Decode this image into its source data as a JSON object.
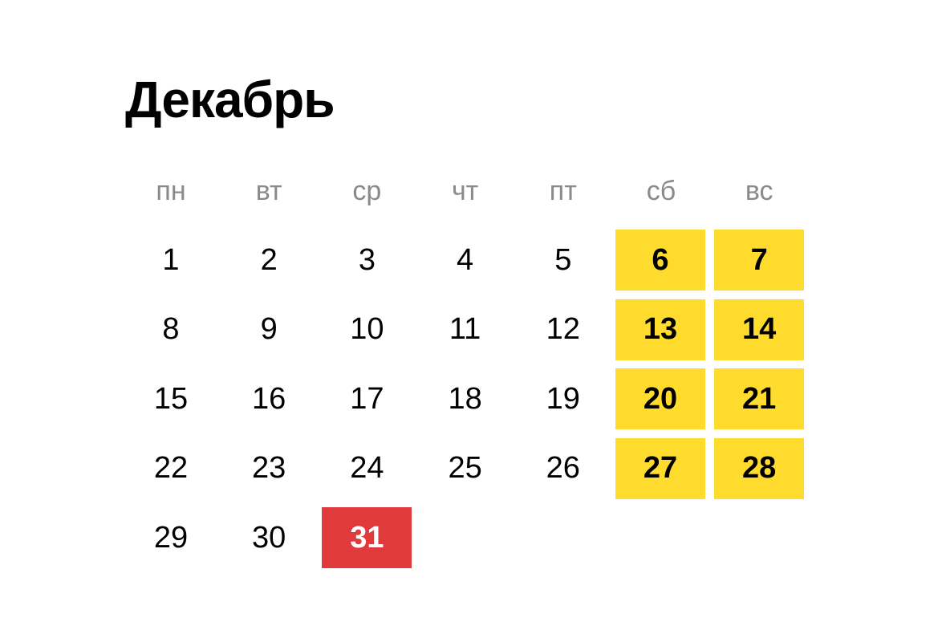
{
  "month_title": "Декабрь",
  "colors": {
    "weekend": "#FEDB2C",
    "holiday": "#E03A3C"
  },
  "weekdays": [
    "пн",
    "вт",
    "ср",
    "чт",
    "пт",
    "сб",
    "вс"
  ],
  "weeks": [
    [
      {
        "day": "1"
      },
      {
        "day": "2"
      },
      {
        "day": "3"
      },
      {
        "day": "4"
      },
      {
        "day": "5"
      },
      {
        "day": "6",
        "type": "weekend"
      },
      {
        "day": "7",
        "type": "weekend"
      }
    ],
    [
      {
        "day": "8"
      },
      {
        "day": "9"
      },
      {
        "day": "10"
      },
      {
        "day": "11"
      },
      {
        "day": "12"
      },
      {
        "day": "13",
        "type": "weekend"
      },
      {
        "day": "14",
        "type": "weekend"
      }
    ],
    [
      {
        "day": "15"
      },
      {
        "day": "16"
      },
      {
        "day": "17"
      },
      {
        "day": "18"
      },
      {
        "day": "19"
      },
      {
        "day": "20",
        "type": "weekend"
      },
      {
        "day": "21",
        "type": "weekend"
      }
    ],
    [
      {
        "day": "22"
      },
      {
        "day": "23"
      },
      {
        "day": "24"
      },
      {
        "day": "25"
      },
      {
        "day": "26"
      },
      {
        "day": "27",
        "type": "weekend"
      },
      {
        "day": "28",
        "type": "weekend"
      }
    ],
    [
      {
        "day": "29"
      },
      {
        "day": "30"
      },
      {
        "day": "31",
        "type": "holiday"
      }
    ]
  ]
}
